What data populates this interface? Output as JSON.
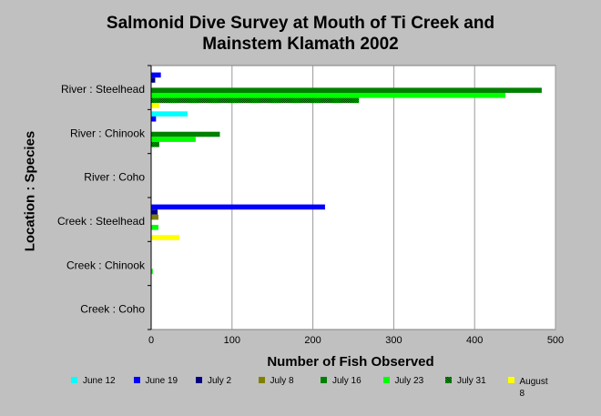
{
  "chart_data": {
    "type": "bar",
    "orientation": "horizontal",
    "title": [
      "Salmonid Dive Survey at Mouth of Ti Creek and",
      "Mainstem Klamath 2002"
    ],
    "xlabel": "Number of Fish Observed",
    "ylabel": "Location : Species",
    "xlim": [
      0,
      500
    ],
    "xticks": [
      0,
      100,
      200,
      300,
      400,
      500
    ],
    "grid": true,
    "legend_position": "bottom",
    "categories": [
      "River : Steelhead",
      "River : Chinook",
      "River : Coho",
      "Creek : Steelhead",
      "Creek : Chinook",
      "Creek : Coho"
    ],
    "series": [
      {
        "name": "June 12",
        "color": "#00ffff",
        "values": [
          0,
          45,
          0,
          0,
          0,
          0
        ]
      },
      {
        "name": "June 19",
        "color": "#0000ff",
        "values": [
          12,
          6,
          0,
          215,
          0,
          0
        ]
      },
      {
        "name": "July 2",
        "color": "#000080",
        "values": [
          5,
          0,
          0,
          8,
          0,
          0
        ]
      },
      {
        "name": "July 8",
        "color": "#808000",
        "values": [
          0,
          0,
          0,
          9,
          0,
          0
        ]
      },
      {
        "name": "July 16",
        "color": "#008000",
        "values": [
          483,
          85,
          0,
          0,
          0,
          0
        ]
      },
      {
        "name": "July 23",
        "color": "#00ff00",
        "values": [
          438,
          55,
          0,
          9,
          2,
          0
        ]
      },
      {
        "name": "July 31",
        "color": "#00aa00",
        "pattern": true,
        "values": [
          257,
          10,
          0,
          0,
          0,
          0
        ]
      },
      {
        "name": "August 8",
        "color": "#ffff00",
        "values": [
          10,
          0,
          0,
          35,
          0,
          0
        ]
      }
    ]
  }
}
